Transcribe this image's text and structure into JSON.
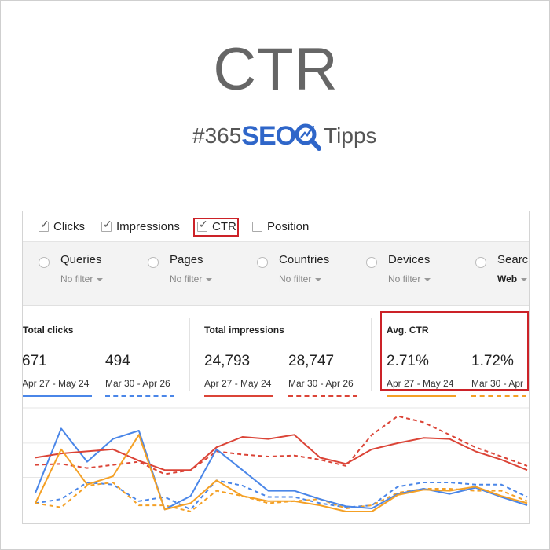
{
  "header": {
    "title": "CTR",
    "brand_prefix": "#365",
    "brand_seo": "SEO",
    "brand_suffix": "Tipps"
  },
  "metrics": [
    {
      "label": "Clicks",
      "checked": true
    },
    {
      "label": "Impressions",
      "checked": true
    },
    {
      "label": "CTR",
      "checked": true,
      "highlighted": true
    },
    {
      "label": "Position",
      "checked": false
    }
  ],
  "filters": [
    {
      "label": "Queries",
      "value": "No filter"
    },
    {
      "label": "Pages",
      "value": "No filter"
    },
    {
      "label": "Countries",
      "value": "No filter"
    },
    {
      "label": "Devices",
      "value": "No filter"
    },
    {
      "label": "Searc",
      "value": "Web"
    }
  ],
  "stats": {
    "clicks": {
      "title": "Total clicks",
      "current": "671",
      "current_range": "Apr 27 - May 24",
      "previous": "494",
      "previous_range": "Mar 30 - Apr 26",
      "color": "#4a86e8"
    },
    "impressions": {
      "title": "Total impressions",
      "current": "24,793",
      "current_range": "Apr 27 - May 24",
      "previous": "28,747",
      "previous_range": "Mar 30 - Apr 26",
      "color": "#db4437"
    },
    "ctr": {
      "title": "Avg. CTR",
      "current": "2.71%",
      "current_range": "Apr 27 - May 24",
      "previous": "1.72%",
      "previous_range": "Mar 30 - Apr",
      "color": "#f4a025"
    }
  },
  "colors": {
    "highlight": "#cc2228",
    "clicks": "#4a86e8",
    "impressions": "#db4437",
    "ctr": "#f4a025",
    "brand_blue": "#2f66c9"
  },
  "chart_data": {
    "type": "line",
    "x": [
      1,
      2,
      3,
      4,
      5,
      6,
      7,
      8,
      9,
      10,
      11,
      12,
      13,
      14,
      15,
      16,
      17,
      18,
      19,
      20
    ],
    "series": [
      {
        "metric": "clicks",
        "period": "current",
        "style": "solid",
        "values": [
          18,
          80,
          48,
          70,
          78,
          2,
          15,
          60,
          40,
          20,
          20,
          12,
          5,
          3,
          17,
          22,
          17,
          23,
          14,
          6
        ]
      },
      {
        "metric": "clicks",
        "period": "previous",
        "style": "dashed",
        "values": [
          8,
          12,
          28,
          26,
          10,
          14,
          2,
          30,
          25,
          14,
          14,
          8,
          4,
          6,
          24,
          28,
          28,
          26,
          26,
          14
        ]
      },
      {
        "metric": "impressions",
        "period": "current",
        "style": "solid",
        "values": [
          52,
          56,
          58,
          60,
          49,
          40,
          40,
          62,
          72,
          70,
          74,
          52,
          46,
          60,
          66,
          71,
          70,
          58,
          50,
          40
        ]
      },
      {
        "metric": "impressions",
        "period": "previous",
        "style": "dashed",
        "values": [
          45,
          46,
          42,
          45,
          48,
          36,
          40,
          58,
          55,
          53,
          54,
          50,
          44,
          74,
          92,
          86,
          74,
          62,
          53,
          44
        ]
      },
      {
        "metric": "ctr",
        "period": "current",
        "style": "solid",
        "values": [
          8,
          60,
          26,
          34,
          74,
          2,
          8,
          30,
          15,
          10,
          10,
          6,
          0,
          0,
          16,
          21,
          20,
          24,
          15,
          8
        ]
      },
      {
        "metric": "ctr",
        "period": "previous",
        "style": "dashed",
        "values": [
          8,
          4,
          25,
          28,
          6,
          6,
          0,
          20,
          15,
          8,
          10,
          12,
          3,
          6,
          18,
          22,
          22,
          20,
          20,
          10
        ]
      }
    ],
    "grid": true,
    "legend": "none"
  }
}
